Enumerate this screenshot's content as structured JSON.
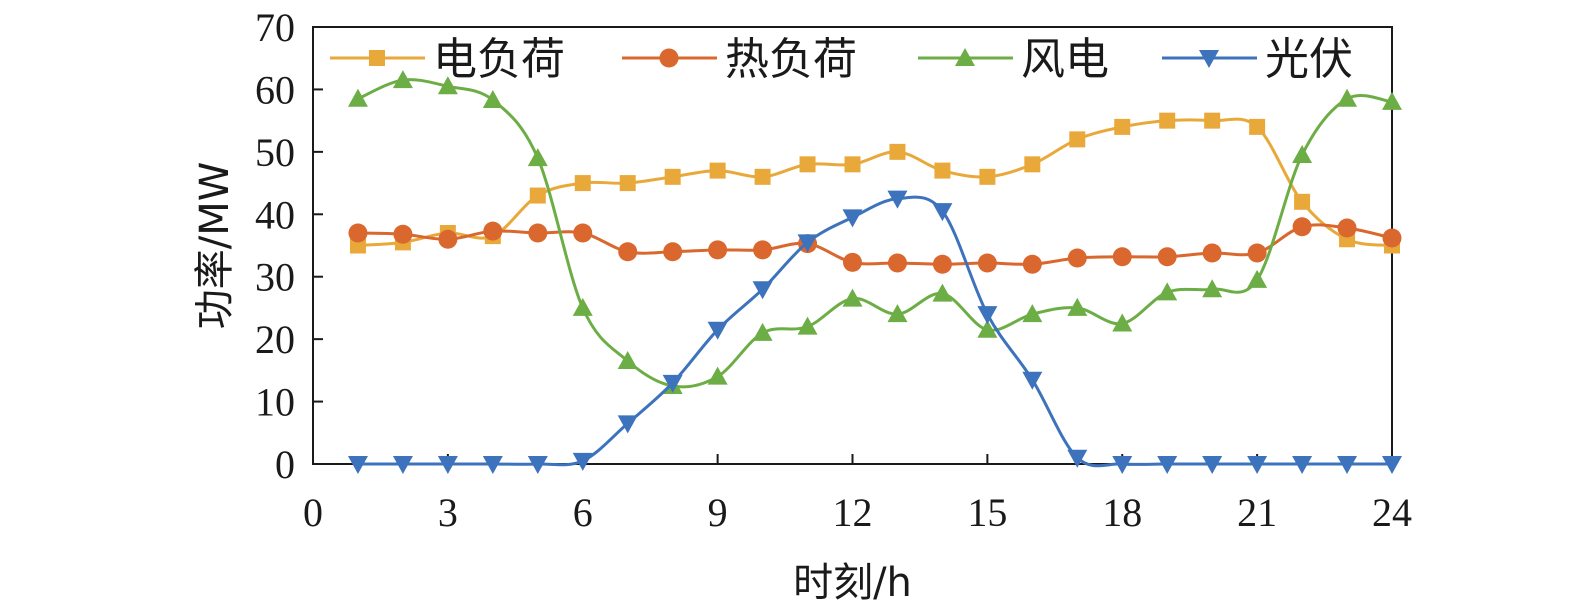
{
  "chart_data": {
    "type": "line",
    "xlabel": "时刻/h",
    "ylabel": "功率/MW",
    "xlim": [
      0,
      24
    ],
    "ylim": [
      0,
      70
    ],
    "xticks": [
      0,
      3,
      6,
      9,
      12,
      15,
      18,
      21,
      24
    ],
    "yticks": [
      0,
      10,
      20,
      30,
      40,
      50,
      60,
      70
    ],
    "grid": false,
    "legend_position": "top",
    "x": [
      1,
      2,
      3,
      4,
      5,
      6,
      7,
      8,
      9,
      10,
      11,
      12,
      13,
      14,
      15,
      16,
      17,
      18,
      19,
      20,
      21,
      22,
      23,
      24
    ],
    "series": [
      {
        "name": "电负荷",
        "color": "#E9A93A",
        "marker": "square",
        "values": [
          35,
          35.5,
          37,
          36.5,
          43,
          45,
          45,
          46,
          47,
          46,
          48,
          48,
          50,
          47,
          46,
          48,
          52,
          54,
          55,
          55,
          54,
          42,
          36,
          35
        ]
      },
      {
        "name": "热负荷",
        "color": "#D9672E",
        "marker": "circle",
        "values": [
          37,
          36.8,
          36,
          37.3,
          37,
          37,
          34,
          34,
          34.3,
          34.3,
          35.3,
          32.3,
          32.2,
          32,
          32.2,
          32,
          33,
          33.2,
          33.2,
          33.8,
          33.8,
          38,
          37.8,
          36.2
        ]
      },
      {
        "name": "风电",
        "color": "#6CAE45",
        "marker": "triangle-up",
        "values": [
          58.5,
          61.5,
          60.5,
          58.3,
          49,
          25,
          16.5,
          12.5,
          14,
          21,
          22,
          26.5,
          24,
          27.3,
          21.5,
          24,
          25,
          22.5,
          27.5,
          28,
          29.5,
          49.5,
          58.5,
          58
        ]
      },
      {
        "name": "光伏",
        "color": "#3D72BD",
        "marker": "triangle-down",
        "values": [
          0,
          0,
          0,
          0,
          0,
          0.5,
          6.5,
          13,
          21.5,
          28,
          35.5,
          39.5,
          42.5,
          40.5,
          24,
          13.5,
          1,
          0,
          0,
          0,
          0,
          0,
          0,
          0
        ]
      }
    ]
  }
}
